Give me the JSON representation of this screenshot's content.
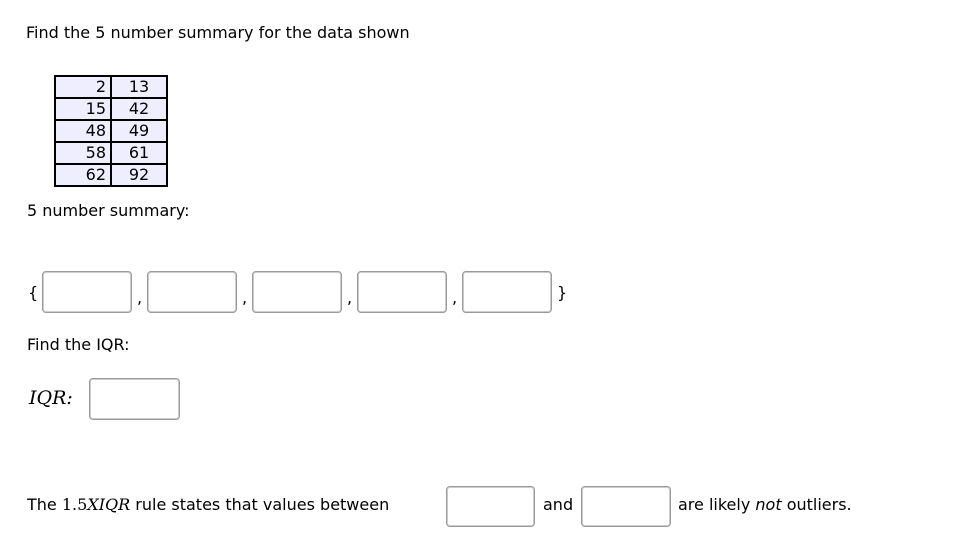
{
  "question": "Find the 5 number summary for the data shown",
  "data_table": [
    [
      "2",
      "13"
    ],
    [
      "15",
      "42"
    ],
    [
      "48",
      "49"
    ],
    [
      "58",
      "61"
    ],
    [
      "62",
      "92"
    ]
  ],
  "summary_label": "5 number summary:",
  "open_brace": "{",
  "close_brace": "}",
  "comma": ",",
  "iqr_prompt": "Find the IQR:",
  "iqr_label": "IQR:",
  "rule": {
    "pre": "The",
    "num": "1.5",
    "math": "XIQR",
    "mid": "rule states that values between",
    "and": "and",
    "post1": "are likely",
    "not": "not",
    "post2": "outliers."
  }
}
